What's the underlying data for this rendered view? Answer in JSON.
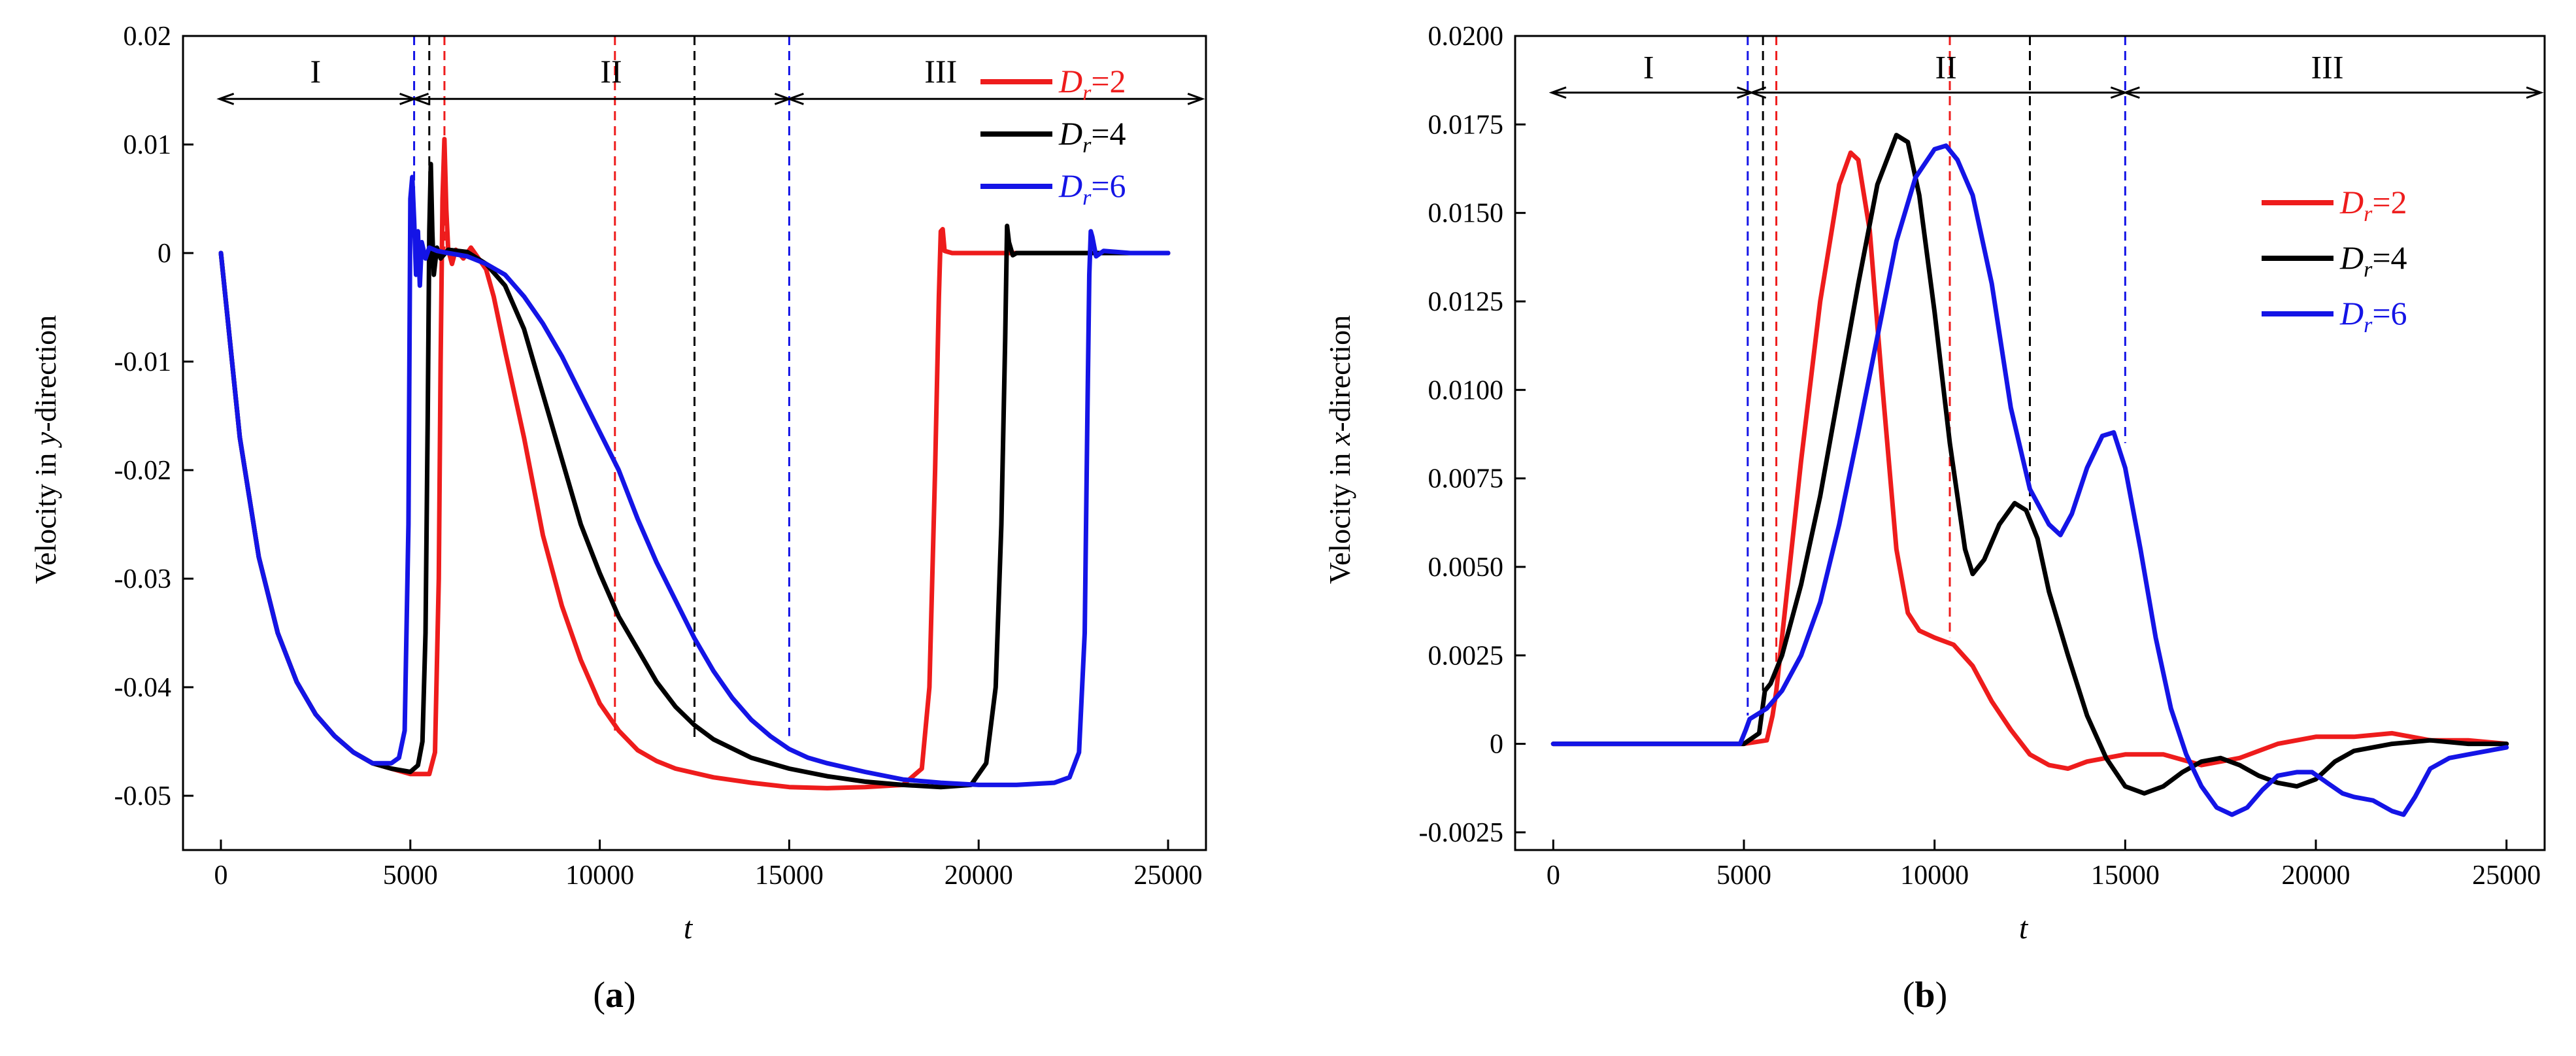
{
  "colors": {
    "red": "#ee1c1c",
    "black": "#000000",
    "blue": "#1414e6",
    "axis": "#000000"
  },
  "chart_data": [
    {
      "panel_label": "(a)",
      "type": "line",
      "title": "",
      "xlabel": "t",
      "ylabel": "Velocity in y-direction",
      "ylabel_parts": [
        "Velocity in ",
        "y",
        "-direction"
      ],
      "xlim": [
        -1000,
        26000
      ],
      "ylim": [
        -0.055,
        0.02
      ],
      "xticks": [
        0,
        5000,
        10000,
        15000,
        20000,
        25000
      ],
      "xtick_labels": [
        "0",
        "5000",
        "10000",
        "15000",
        "20000",
        "25000"
      ],
      "yticks": [
        -0.05,
        -0.04,
        -0.03,
        -0.02,
        -0.01,
        0,
        0.01,
        0.02
      ],
      "ytick_labels": [
        "-0.05",
        "-0.04",
        "-0.03",
        "-0.02",
        "-0.01",
        "0",
        "0.01",
        "0.02"
      ],
      "grid": false,
      "legend_position": "top-right",
      "regions": [
        {
          "label": "I",
          "from": -40,
          "to": 5100,
          "label_x": 2500
        },
        {
          "label": "II",
          "from": 5100,
          "to": 15000,
          "label_x": 10300
        },
        {
          "label": "III",
          "from": 15000,
          "to": 25900,
          "label_x": 19000
        }
      ],
      "arrow_y": 0.0142,
      "region_label_y": 0.0167,
      "vlines": [
        {
          "x": 5100,
          "color": "blue"
        },
        {
          "x": 5500,
          "color": "black"
        },
        {
          "x": 5900,
          "color": "red"
        },
        {
          "x": 10400,
          "color": "red"
        },
        {
          "x": 12500,
          "color": "black"
        },
        {
          "x": 15000,
          "color": "blue"
        }
      ],
      "series": [
        {
          "name": "Dr=2",
          "legend_main": "D",
          "legend_sub": "r",
          "legend_suffix": "=2",
          "color": "red",
          "label_color": "red",
          "x": [
            0,
            500,
            1000,
            1500,
            2000,
            2500,
            3000,
            3500,
            4000,
            4500,
            5000,
            5500,
            5650,
            5750,
            5800,
            5850,
            5900,
            5950,
            6000,
            6100,
            6200,
            6400,
            6600,
            6800,
            7000,
            7200,
            7500,
            8000,
            8500,
            9000,
            9500,
            10000,
            10500,
            11000,
            11500,
            12000,
            13000,
            14000,
            15000,
            16000,
            17000,
            18000,
            18500,
            18700,
            18850,
            18950,
            19000,
            19050,
            19100,
            19300,
            20000,
            21000,
            22000,
            23000,
            24000,
            25000
          ],
          "y": [
            0,
            -0.017,
            -0.028,
            -0.035,
            -0.0395,
            -0.0425,
            -0.0445,
            -0.046,
            -0.047,
            -0.0475,
            -0.048,
            -0.048,
            -0.046,
            -0.03,
            -0.01,
            0.005,
            0.0105,
            0.004,
            0.0003,
            -0.001,
            0.0003,
            -0.0005,
            0.0005,
            -0.0005,
            -0.0015,
            -0.004,
            -0.009,
            -0.017,
            -0.026,
            -0.0325,
            -0.0375,
            -0.0415,
            -0.044,
            -0.0458,
            -0.0468,
            -0.0475,
            -0.0483,
            -0.0488,
            -0.0492,
            -0.0493,
            -0.0492,
            -0.049,
            -0.0475,
            -0.04,
            -0.02,
            -0.004,
            0.002,
            0.0022,
            0.0002,
            0,
            0,
            0,
            0,
            0,
            0,
            0
          ]
        },
        {
          "name": "Dr=4",
          "legend_main": "D",
          "legend_sub": "r",
          "legend_suffix": "=4",
          "color": "black",
          "label_color": "black",
          "x": [
            0,
            500,
            1000,
            1500,
            2000,
            2500,
            3000,
            3500,
            4000,
            4500,
            5000,
            5200,
            5320,
            5400,
            5460,
            5500,
            5540,
            5580,
            5620,
            5700,
            5800,
            6000,
            6500,
            7000,
            7500,
            8000,
            8500,
            9000,
            9500,
            10000,
            10500,
            11000,
            11500,
            12000,
            12500,
            13000,
            14000,
            15000,
            16000,
            17000,
            18000,
            19000,
            19800,
            20200,
            20450,
            20600,
            20700,
            20750,
            20800,
            20900,
            21000,
            22000,
            23000,
            24000,
            25000
          ],
          "y": [
            0,
            -0.017,
            -0.028,
            -0.035,
            -0.0395,
            -0.0425,
            -0.0445,
            -0.046,
            -0.047,
            -0.0475,
            -0.0478,
            -0.0472,
            -0.045,
            -0.035,
            -0.015,
            0.002,
            0.0082,
            0.002,
            -0.002,
            0.0005,
            -0.0005,
            0.0003,
            0.0001,
            -0.001,
            -0.003,
            -0.007,
            -0.013,
            -0.019,
            -0.025,
            -0.0295,
            -0.0335,
            -0.0365,
            -0.0395,
            -0.0418,
            -0.0435,
            -0.0448,
            -0.0465,
            -0.0475,
            -0.0482,
            -0.0487,
            -0.049,
            -0.0492,
            -0.049,
            -0.047,
            -0.04,
            -0.025,
            -0.008,
            0.0025,
            0.001,
            -0.0002,
            0,
            0,
            0,
            0,
            0
          ]
        },
        {
          "name": "Dr=6",
          "legend_main": "D",
          "legend_sub": "r",
          "legend_suffix": "=6",
          "color": "blue",
          "label_color": "blue",
          "x": [
            0,
            500,
            1000,
            1500,
            2000,
            2500,
            3000,
            3500,
            4000,
            4500,
            4700,
            4850,
            4950,
            5000,
            5050,
            5100,
            5150,
            5200,
            5250,
            5300,
            5400,
            5500,
            5700,
            6000,
            6500,
            7000,
            7500,
            8000,
            8500,
            9000,
            9500,
            10000,
            10500,
            11000,
            11500,
            12000,
            12500,
            13000,
            13500,
            14000,
            14500,
            15000,
            15500,
            16000,
            17000,
            18000,
            19000,
            20000,
            21000,
            22000,
            22400,
            22650,
            22800,
            22870,
            22920,
            22960,
            23000,
            23100,
            23300,
            24000,
            25000
          ],
          "y": [
            0,
            -0.017,
            -0.028,
            -0.035,
            -0.0395,
            -0.0425,
            -0.0445,
            -0.046,
            -0.047,
            -0.047,
            -0.0465,
            -0.044,
            -0.025,
            0.005,
            0.007,
            0.003,
            -0.002,
            0.002,
            -0.003,
            0.001,
            -0.0005,
            0.0005,
            0.0002,
            0,
            -0.0003,
            -0.001,
            -0.002,
            -0.004,
            -0.0065,
            -0.0095,
            -0.013,
            -0.0165,
            -0.02,
            -0.0245,
            -0.0285,
            -0.032,
            -0.0355,
            -0.0385,
            -0.041,
            -0.043,
            -0.0445,
            -0.0457,
            -0.0465,
            -0.047,
            -0.0478,
            -0.0485,
            -0.0488,
            -0.049,
            -0.049,
            -0.0488,
            -0.0483,
            -0.046,
            -0.035,
            -0.015,
            -0.002,
            0.002,
            0.0015,
            -0.0003,
            0.0002,
            0,
            0
          ]
        }
      ]
    },
    {
      "panel_label": "(b)",
      "type": "line",
      "title": "",
      "xlabel": "t",
      "ylabel": "Velocity in x-direction",
      "ylabel_parts": [
        "Velocity in ",
        "x",
        "-direction"
      ],
      "xlim": [
        -1000,
        26000
      ],
      "ylim": [
        -0.003,
        0.02
      ],
      "xticks": [
        0,
        5000,
        10000,
        15000,
        20000,
        25000
      ],
      "xtick_labels": [
        "0",
        "5000",
        "10000",
        "15000",
        "20000",
        "25000"
      ],
      "yticks": [
        -0.0025,
        0,
        0.0025,
        0.005,
        0.0075,
        0.01,
        0.0125,
        0.015,
        0.0175,
        0.02
      ],
      "ytick_labels": [
        "-0.0025",
        "0",
        "0.0025",
        "0.0050",
        "0.0075",
        "0.0100",
        "0.0125",
        "0.0150",
        "0.0175",
        "0.0200"
      ],
      "grid": false,
      "legend_position": "top-right",
      "regions": [
        {
          "label": "I",
          "from": -40,
          "to": 5200,
          "label_x": 2500
        },
        {
          "label": "II",
          "from": 5200,
          "to": 15000,
          "label_x": 10300
        },
        {
          "label": "III",
          "from": 15000,
          "to": 25900,
          "label_x": 20300
        }
      ],
      "arrow_y": 0.0184,
      "region_label_y": 0.0191,
      "vlines": [
        {
          "x": 5100,
          "color": "blue"
        },
        {
          "x": 5500,
          "color": "black"
        },
        {
          "x": 5850,
          "color": "red"
        },
        {
          "x": 10400,
          "color": "red"
        },
        {
          "x": 12500,
          "color": "black"
        },
        {
          "x": 15000,
          "color": "blue"
        }
      ],
      "series": [
        {
          "name": "Dr=2",
          "legend_main": "D",
          "legend_sub": "r",
          "legend_suffix": "=2",
          "color": "red",
          "label_color": "red",
          "x": [
            0,
            5000,
            5600,
            5750,
            5850,
            6000,
            6500,
            7000,
            7500,
            7800,
            8000,
            8300,
            8600,
            9000,
            9300,
            9600,
            9800,
            10000,
            10500,
            11000,
            11500,
            12000,
            12500,
            13000,
            13500,
            14000,
            15000,
            16000,
            17000,
            18000,
            19000,
            20000,
            21000,
            22000,
            23000,
            24000,
            25000
          ],
          "y": [
            0,
            0,
            0.0001,
            0.0008,
            0.0015,
            0.003,
            0.008,
            0.0125,
            0.0158,
            0.0167,
            0.0165,
            0.0145,
            0.0105,
            0.0055,
            0.0037,
            0.0032,
            0.0031,
            0.003,
            0.0028,
            0.0022,
            0.0012,
            0.0004,
            -0.0003,
            -0.0006,
            -0.0007,
            -0.0005,
            -0.0003,
            -0.0003,
            -0.0006,
            -0.0004,
            0,
            0.0002,
            0.0002,
            0.0003,
            0.0001,
            0.0001,
            0
          ]
        },
        {
          "name": "Dr=4",
          "legend_main": "D",
          "legend_sub": "r",
          "legend_suffix": "=4",
          "color": "black",
          "label_color": "black",
          "x": [
            0,
            5000,
            5400,
            5550,
            5700,
            6000,
            6500,
            7000,
            7500,
            8000,
            8500,
            9000,
            9300,
            9600,
            10000,
            10400,
            10800,
            11000,
            11300,
            11700,
            12100,
            12400,
            12700,
            13000,
            13500,
            14000,
            14500,
            15000,
            15500,
            16000,
            16500,
            17000,
            17500,
            18000,
            18500,
            19000,
            19500,
            20000,
            20500,
            21000,
            22000,
            23000,
            24000,
            25000
          ],
          "y": [
            0,
            0,
            0.0003,
            0.0015,
            0.0017,
            0.0025,
            0.0045,
            0.007,
            0.01,
            0.013,
            0.0158,
            0.0172,
            0.017,
            0.0155,
            0.0122,
            0.0085,
            0.0055,
            0.0048,
            0.0052,
            0.0062,
            0.0068,
            0.0066,
            0.0058,
            0.0043,
            0.0025,
            0.0008,
            -0.0004,
            -0.0012,
            -0.0014,
            -0.0012,
            -0.0008,
            -0.0005,
            -0.0004,
            -0.0006,
            -0.0009,
            -0.0011,
            -0.0012,
            -0.001,
            -0.0005,
            -0.0002,
            0,
            0.0001,
            0,
            0
          ]
        },
        {
          "name": "Dr=6",
          "legend_main": "D",
          "legend_sub": "r",
          "legend_suffix": "=6",
          "color": "blue",
          "label_color": "blue",
          "x": [
            0,
            4900,
            5050,
            5150,
            5300,
            5600,
            6000,
            6500,
            7000,
            7500,
            8000,
            8500,
            9000,
            9500,
            10000,
            10300,
            10600,
            11000,
            11500,
            12000,
            12500,
            13000,
            13300,
            13600,
            14000,
            14400,
            14700,
            15000,
            15400,
            15800,
            16200,
            16600,
            17000,
            17400,
            17800,
            18200,
            18600,
            19000,
            19500,
            19900,
            20300,
            20700,
            21000,
            21500,
            22000,
            22300,
            22600,
            23000,
            23500,
            24000,
            24500,
            25000
          ],
          "y": [
            0,
            0,
            0.0004,
            0.0007,
            0.0008,
            0.001,
            0.0015,
            0.0025,
            0.004,
            0.0062,
            0.0088,
            0.0115,
            0.0142,
            0.016,
            0.0168,
            0.0169,
            0.0165,
            0.0155,
            0.013,
            0.0095,
            0.0072,
            0.0062,
            0.0059,
            0.0065,
            0.0078,
            0.0087,
            0.0088,
            0.0078,
            0.0055,
            0.003,
            0.001,
            -0.0003,
            -0.0012,
            -0.0018,
            -0.002,
            -0.0018,
            -0.0013,
            -0.0009,
            -0.0008,
            -0.0008,
            -0.0011,
            -0.0014,
            -0.0015,
            -0.0016,
            -0.0019,
            -0.002,
            -0.0015,
            -0.0007,
            -0.0004,
            -0.0003,
            -0.0002,
            -0.0001
          ]
        }
      ]
    }
  ]
}
